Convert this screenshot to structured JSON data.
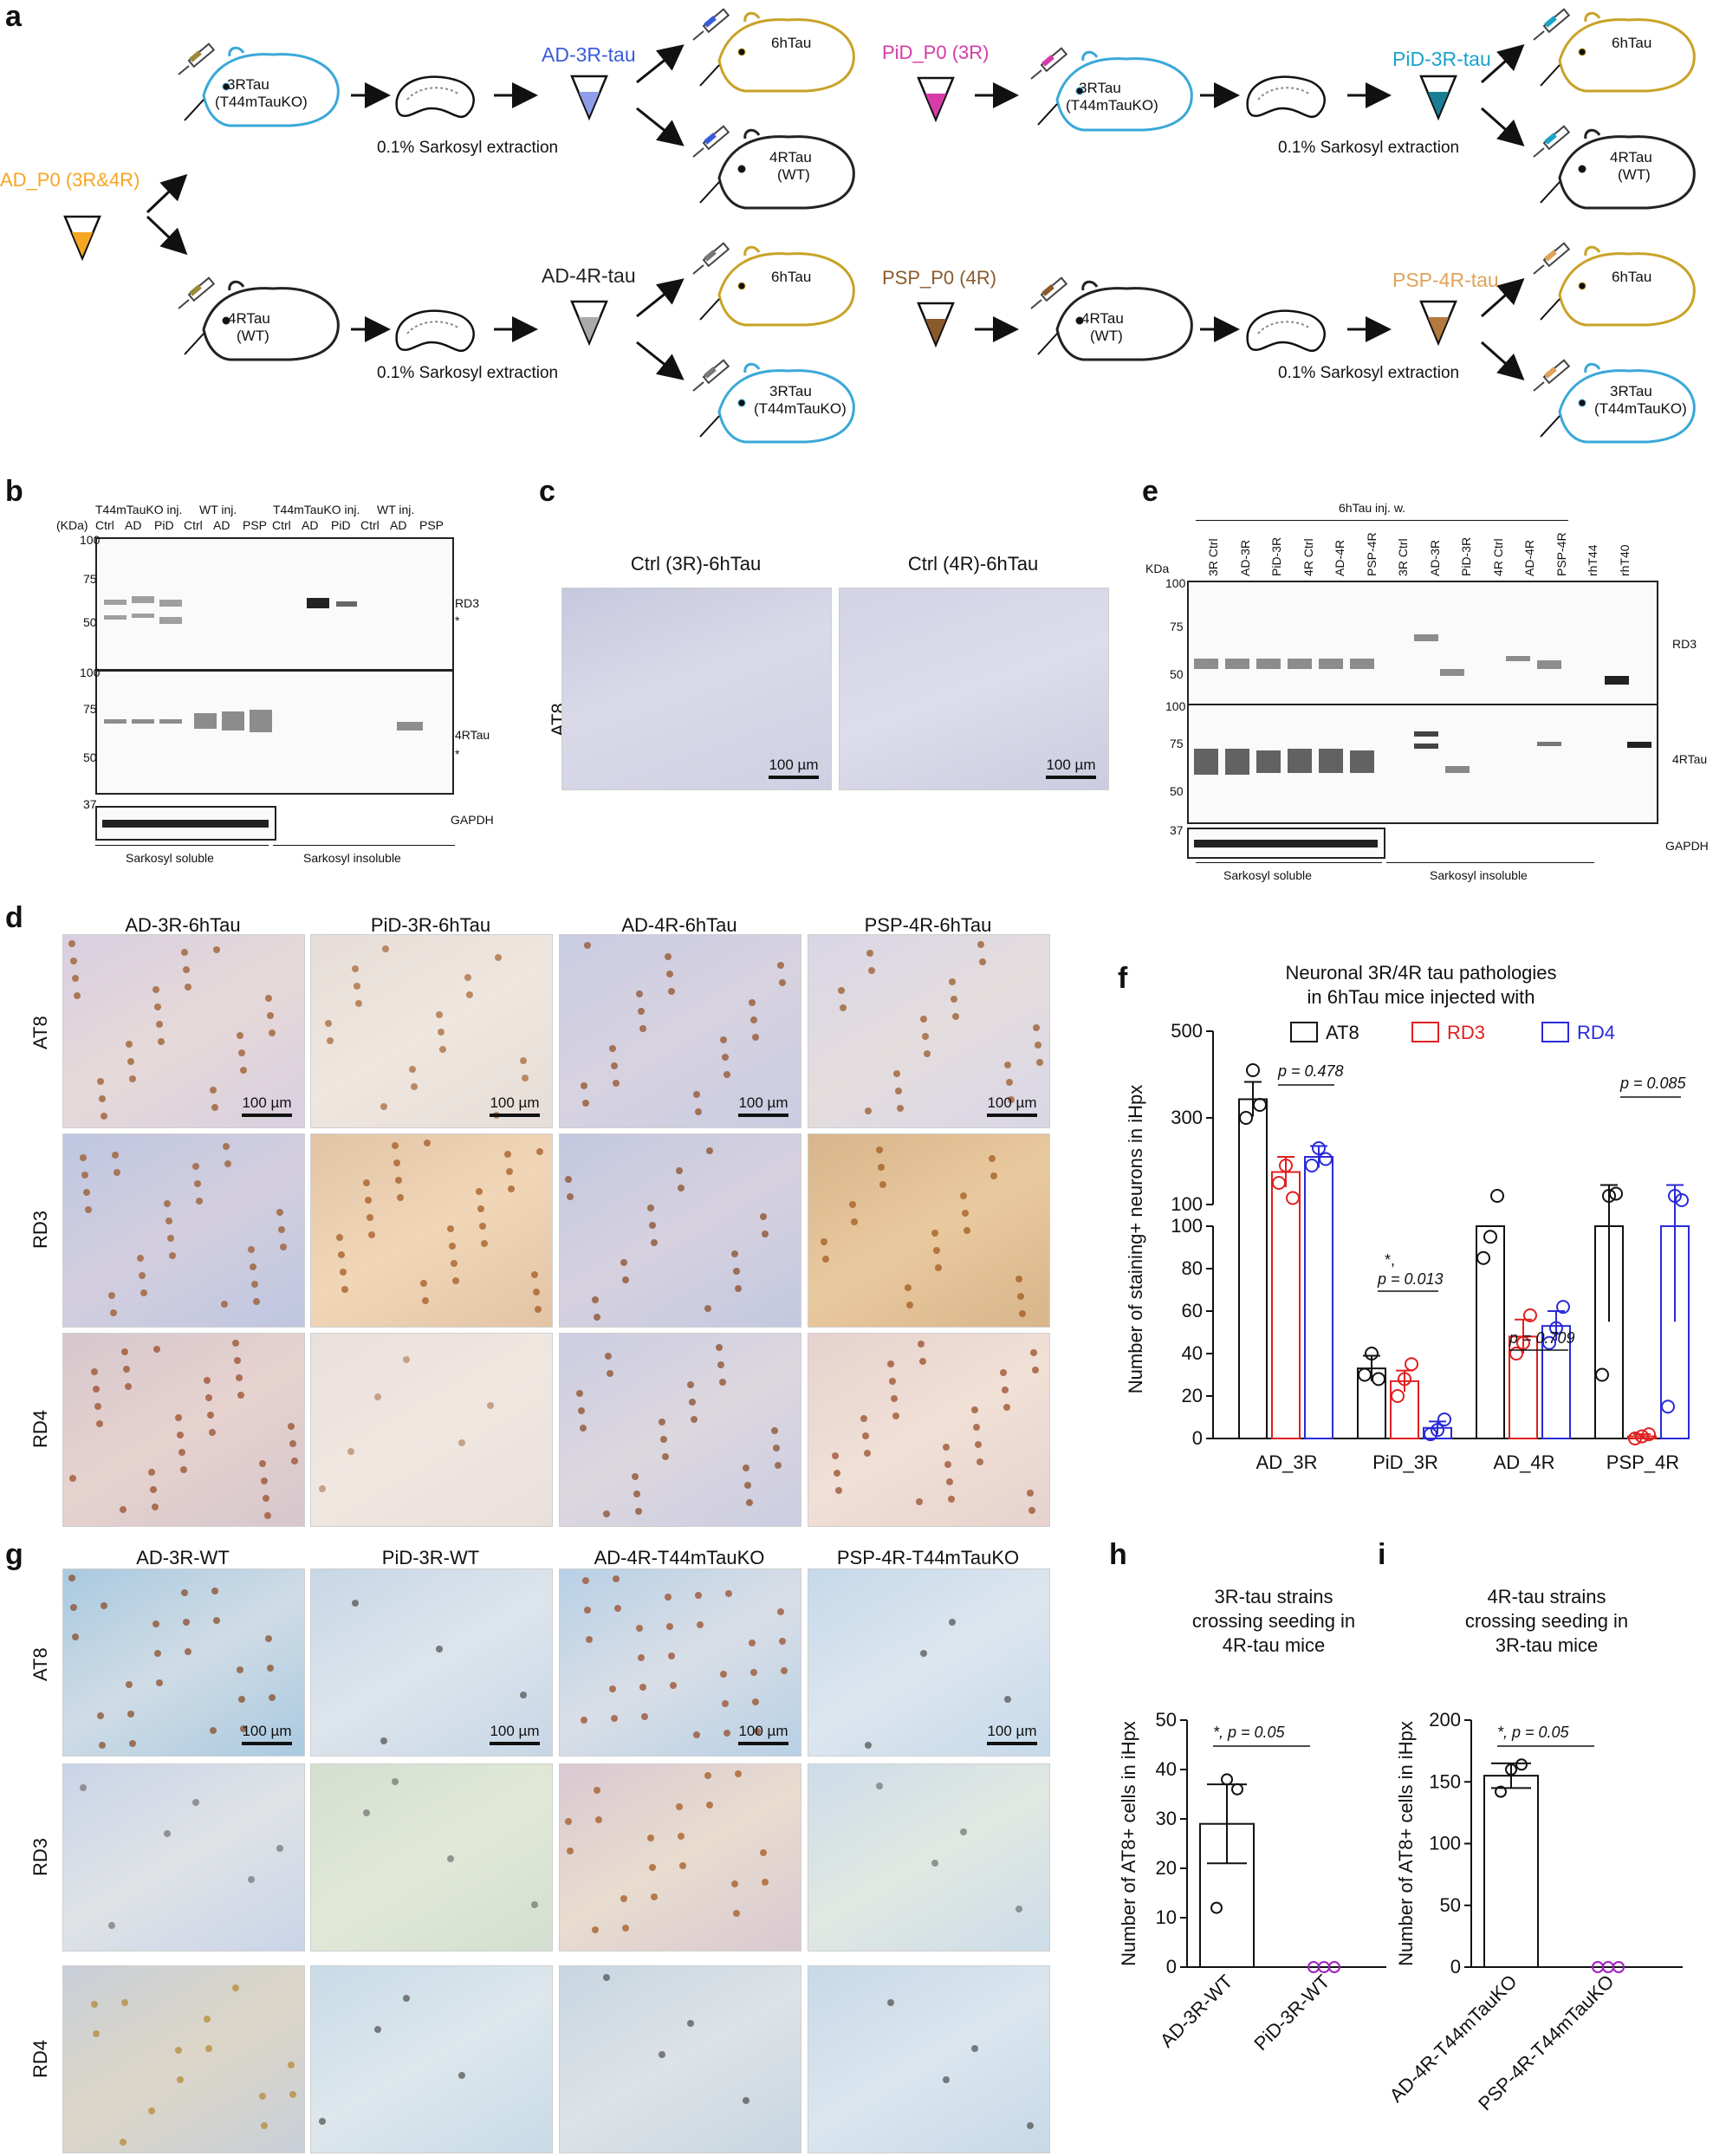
{
  "panel_labels": {
    "a": "a",
    "b": "b",
    "c": "c",
    "d": "d",
    "e": "e",
    "f": "f",
    "g": "g",
    "h": "h",
    "i": "i"
  },
  "panel_a": {
    "top_left": {
      "source": "AD_P0 (3R&4R)",
      "host": "3RTau",
      "host_sub": "(T44mTauKO)",
      "extraction": "0.1% Sarkosyl extraction",
      "strain": "AD-3R-tau",
      "recipient_1": "6hTau",
      "recipient_2": "4RTau",
      "recipient_2_sub": "(WT)"
    },
    "bottom_left": {
      "host": "4RTau",
      "host_sub": "(WT)",
      "extraction": "0.1% Sarkosyl extraction",
      "strain": "AD-4R-tau",
      "recipient_1": "6hTau",
      "recipient_2": "3RTau",
      "recipient_2_sub": "(T44mTauKO)"
    },
    "top_right": {
      "source": "PiD_P0 (3R)",
      "host": "3RTau",
      "host_sub": "(T44mTauKO)",
      "extraction": "0.1% Sarkosyl extraction",
      "strain": "PiD-3R-tau",
      "recipient_1": "6hTau",
      "recipient_2": "4RTau",
      "recipient_2_sub": "(WT)"
    },
    "bottom_right": {
      "source": "PSP_P0 (4R)",
      "host": "4RTau",
      "host_sub": "(WT)",
      "extraction": "0.1% Sarkosyl extraction",
      "strain": "PSP-4R-tau",
      "recipient_1": "6hTau",
      "recipient_2": "3RTau",
      "recipient_2_sub": "(T44mTauKO)"
    },
    "colors": {
      "ad": "#f5a623",
      "pid": "#d63ba8",
      "psp": "#8b5a2b",
      "ad3r": "#3a5bd9",
      "pid3r": "#1aa3c7",
      "psp4r": "#e0a35a",
      "ad4r": "#555555",
      "mouse_3r": "#3aa8d8",
      "mouse_6h": "#c9a227",
      "mouse_4r": "#222222"
    }
  },
  "panel_b": {
    "kda_label": "(KDa)",
    "group_headers": [
      "T44mTauKO inj.",
      "WT inj.",
      "T44mTauKO inj.",
      "WT inj."
    ],
    "lanes": [
      "Ctrl",
      "AD",
      "PiD",
      "Ctrl",
      "AD",
      "PSP",
      "Ctrl",
      "AD",
      "PiD",
      "Ctrl",
      "AD",
      "PSP"
    ],
    "markers_top": [
      "100",
      "75",
      "50"
    ],
    "markers_mid": [
      "100",
      "75",
      "50"
    ],
    "markers_bottom": [
      "37"
    ],
    "band_labels": [
      "RD3",
      "4RTau",
      "GAPDH"
    ],
    "star": "*",
    "fractions": [
      "Sarkosyl soluble",
      "Sarkosyl insoluble"
    ]
  },
  "panel_c": {
    "columns": [
      "Ctrl (3R)-6hTau",
      "Ctrl (4R)-6hTau"
    ],
    "row": "AT8",
    "scale": "100 µm"
  },
  "panel_d": {
    "columns": [
      "AD-3R-6hTau",
      "PiD-3R-6hTau",
      "AD-4R-6hTau",
      "PSP-4R-6hTau"
    ],
    "rows": [
      "AT8",
      "RD3",
      "RD4"
    ],
    "scale": "100 µm"
  },
  "panel_e": {
    "header": "6hTau inj. w.",
    "kda_label": "KDa",
    "lanes": [
      "3R Ctrl",
      "AD-3R",
      "PiD-3R",
      "4R Ctrl",
      "AD-4R",
      "PSP-4R",
      "3R Ctrl",
      "AD-3R",
      "PiD-3R",
      "4R Ctrl",
      "AD-4R",
      "PSP-4R",
      "rhT44",
      "rhT40"
    ],
    "markers_top": [
      "100",
      "75",
      "50"
    ],
    "markers_mid": [
      "100",
      "75",
      "50"
    ],
    "markers_bottom": [
      "37"
    ],
    "band_labels": [
      "RD3",
      "4RTau",
      "GAPDH"
    ],
    "fractions": [
      "Sarkosyl soluble",
      "Sarkosyl insoluble"
    ]
  },
  "panel_g": {
    "columns": [
      "AD-3R-WT",
      "PiD-3R-WT",
      "AD-4R-T44mTauKO",
      "PSP-4R-T44mTauKO"
    ],
    "rows": [
      "AT8",
      "RD3",
      "RD4"
    ],
    "scale": "100 µm"
  },
  "chart_data": [
    {
      "id": "f",
      "type": "bar",
      "title": "Neuronal 3R/4R tau pathologies",
      "subtitle": "in 6hTau mice injected with",
      "ylabel": "Number of staining+ neurons in iHpx",
      "categories": [
        "AD_3R",
        "PiD_3R",
        "AD_4R",
        "PSP_4R"
      ],
      "ylim": [
        0,
        500
      ],
      "yticks": [
        "0",
        "20",
        "40",
        "60",
        "80",
        "100",
        "100",
        "300",
        "500"
      ],
      "series": [
        {
          "name": "AT8",
          "color": "#111111",
          "values": [
            343,
            33,
            100,
            100
          ],
          "err": [
            40,
            6,
            0,
            45
          ],
          "points": [
            [
              300,
              410,
              330
            ],
            [
              30,
              40,
              28
            ],
            [
              85,
              95,
              120
            ],
            [
              30,
              120,
              125
            ]
          ]
        },
        {
          "name": "RD3",
          "color": "#e02020",
          "values": [
            175,
            27,
            48,
            1
          ],
          "err": [
            35,
            5,
            8,
            1
          ],
          "points": [
            [
              150,
              190,
              115
            ],
            [
              20,
              28,
              35
            ],
            [
              40,
              45,
              58
            ],
            [
              0,
              1,
              2
            ]
          ]
        },
        {
          "name": "RD4",
          "color": "#2a2ad8",
          "values": [
            210,
            5,
            53,
            100
          ],
          "err": [
            25,
            3,
            7,
            45
          ],
          "points": [
            [
              190,
              230,
              205
            ],
            [
              2,
              4,
              9
            ],
            [
              45,
              52,
              62
            ],
            [
              15,
              120,
              110
            ]
          ]
        }
      ],
      "annotations": [
        "p = 0.478",
        "*,",
        "p = 0.013",
        "p = 0.709",
        "p = 0.085"
      ]
    },
    {
      "id": "h",
      "type": "bar",
      "title": "3R-tau strains",
      "subtitle_lines": [
        "crossing seeding in",
        "4R-tau mice"
      ],
      "ylabel": "Number of AT8+ cells in iHpx",
      "categories": [
        "AD-3R-WT",
        "PiD-3R-WT"
      ],
      "ylim": [
        0,
        50
      ],
      "yticks": [
        "0",
        "10",
        "20",
        "30",
        "40",
        "50"
      ],
      "values": [
        29,
        0
      ],
      "err": [
        8,
        0
      ],
      "points": [
        [
          12,
          38,
          36
        ],
        [
          0,
          0,
          0
        ]
      ],
      "point_colors": [
        "#111111",
        "#a020c0"
      ],
      "annotation": "*, p = 0.05"
    },
    {
      "id": "i",
      "type": "bar",
      "title": "4R-tau strains",
      "subtitle_lines": [
        "crossing seeding in",
        "3R-tau mice"
      ],
      "ylabel": "Number of AT8+ cells in iHpx",
      "categories": [
        "AD-4R-T44mTauKO",
        "PSP-4R-T44mTauKO"
      ],
      "ylim": [
        0,
        200
      ],
      "yticks": [
        "0",
        "50",
        "100",
        "150",
        "200"
      ],
      "values": [
        155,
        0
      ],
      "err": [
        10,
        0
      ],
      "points": [
        [
          142,
          160,
          164
        ],
        [
          0,
          0,
          0
        ]
      ],
      "point_colors": [
        "#111111",
        "#a020c0"
      ],
      "annotation": "*, p = 0.05"
    }
  ]
}
